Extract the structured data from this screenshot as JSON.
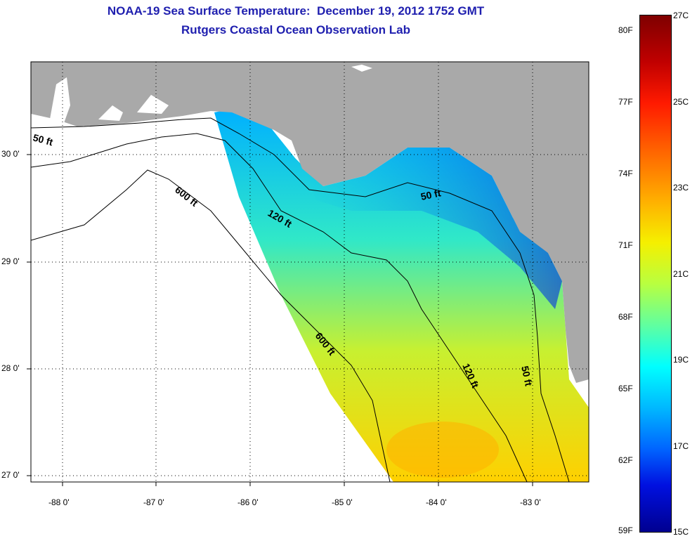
{
  "title_line1": "NOAA-19 Sea Surface Temperature:  December 19, 2012 1752 GMT",
  "title_line2": "Rutgers Coastal Ocean Observation Lab",
  "map": {
    "x_ticks": [
      "-88 0'",
      "-87 0'",
      "-86 0'",
      "-85 0'",
      "-84 0'",
      "-83 0'"
    ],
    "y_ticks": [
      "30 0'",
      "29 0'",
      "28 0'",
      "27 0'"
    ],
    "contour_labels": {
      "c50_west": "50 ft",
      "c600_north": "600 ft",
      "c120_north": "120 ft",
      "c50_east": "50 ft",
      "c600_south": "600 ft",
      "c120_south": "120 ft",
      "c50_south": "50 ft"
    },
    "colors": {
      "land": "#a9a9a9",
      "ocean_nodata": "#ffffff",
      "contour": "#000000"
    }
  },
  "colorbar": {
    "fahrenheit": [
      "80F",
      "77F",
      "74F",
      "71F",
      "68F",
      "65F",
      "62F",
      "59F"
    ],
    "celsius": [
      "27C",
      "25C",
      "23C",
      "21C",
      "19C",
      "17C",
      "15C"
    ],
    "range_c": [
      15,
      27
    ]
  }
}
